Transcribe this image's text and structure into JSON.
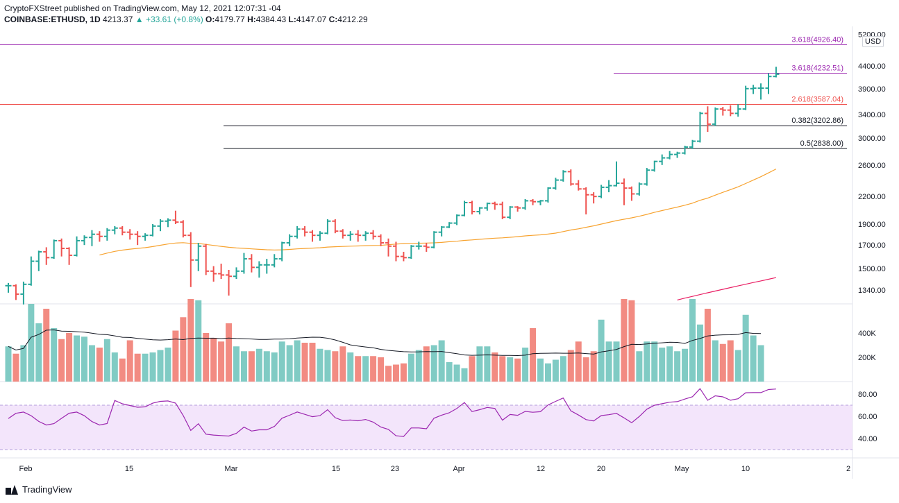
{
  "header": {
    "published": "CryptoFXStreet published on TradingView.com, May 12, 2021 12:07:31 -04",
    "symbol": "COINBASE:ETHUSD, 1D",
    "last": "4213.37",
    "change": "▲ +33.61 (+0.8%)",
    "o_label": "O:",
    "o_value": "4179.77",
    "h_label": "H:",
    "h_value": "4384.43",
    "l_label": "L:",
    "l_value": "4147.07",
    "c_label": "C:",
    "c_value": "4212.29"
  },
  "brand": "TradingView",
  "colors": {
    "up": "#26a69a",
    "down": "#ef5350",
    "ma50": "#f7a330",
    "ma200": "#e91e63",
    "rsi": "#9c27b0",
    "rsi_band": "#f3e5fb",
    "volume_ma": "#131722"
  },
  "chart_data": [
    {
      "type": "ohlc",
      "pane": "price",
      "scale": "log",
      "currency": "USD",
      "price_ticks": [
        "5200.00",
        "4400.00",
        "3900.00",
        "3400.00",
        "3000.00",
        "2600.00",
        "2200.00",
        "1900.00",
        "1700.00",
        "1500.00",
        "1340.00"
      ],
      "x_ticks": [
        "Feb",
        "15",
        "Mar",
        "15",
        "23",
        "Apr",
        "12",
        "20",
        "May",
        "10",
        "2"
      ],
      "series": [
        {
          "name": "ETHUSD",
          "ohlc": [
            [
              1370,
              1390,
              1320,
              1370
            ],
            [
              1370,
              1380,
              1270,
              1310
            ],
            [
              1310,
              1400,
              1240,
              1380
            ],
            [
              1380,
              1600,
              1370,
              1560
            ],
            [
              1560,
              1650,
              1480,
              1640
            ],
            [
              1640,
              1680,
              1530,
              1590
            ],
            [
              1590,
              1750,
              1580,
              1740
            ],
            [
              1740,
              1760,
              1600,
              1670
            ],
            [
              1670,
              1680,
              1530,
              1610
            ],
            [
              1610,
              1780,
              1600,
              1740
            ],
            [
              1740,
              1790,
              1700,
              1770
            ],
            [
              1770,
              1840,
              1690,
              1800
            ],
            [
              1800,
              1830,
              1730,
              1780
            ],
            [
              1780,
              1860,
              1740,
              1840
            ],
            [
              1840,
              1880,
              1800,
              1860
            ],
            [
              1860,
              1880,
              1790,
              1820
            ],
            [
              1820,
              1850,
              1750,
              1800
            ],
            [
              1800,
              1830,
              1700,
              1780
            ],
            [
              1780,
              1810,
              1740,
              1790
            ],
            [
              1790,
              1900,
              1780,
              1880
            ],
            [
              1880,
              1950,
              1830,
              1930
            ],
            [
              1930,
              1960,
              1870,
              1940
            ],
            [
              1940,
              2040,
              1900,
              1920
            ],
            [
              1920,
              1940,
              1770,
              1790
            ],
            [
              1790,
              1820,
              1360,
              1570
            ],
            [
              1570,
              1720,
              1480,
              1690
            ],
            [
              1690,
              1710,
              1450,
              1480
            ],
            [
              1480,
              1520,
              1400,
              1460
            ],
            [
              1460,
              1540,
              1420,
              1450
            ],
            [
              1450,
              1490,
              1300,
              1440
            ],
            [
              1440,
              1510,
              1420,
              1480
            ],
            [
              1480,
              1630,
              1460,
              1580
            ],
            [
              1580,
              1620,
              1470,
              1510
            ],
            [
              1510,
              1560,
              1430,
              1530
            ],
            [
              1530,
              1580,
              1460,
              1530
            ],
            [
              1530,
              1620,
              1510,
              1580
            ],
            [
              1580,
              1730,
              1560,
              1720
            ],
            [
              1720,
              1800,
              1690,
              1780
            ],
            [
              1780,
              1880,
              1760,
              1850
            ],
            [
              1850,
              1880,
              1780,
              1820
            ],
            [
              1820,
              1840,
              1730,
              1790
            ],
            [
              1790,
              1830,
              1740,
              1810
            ],
            [
              1810,
              1950,
              1800,
              1930
            ],
            [
              1930,
              1950,
              1810,
              1830
            ],
            [
              1830,
              1850,
              1760,
              1790
            ],
            [
              1790,
              1830,
              1740,
              1800
            ],
            [
              1800,
              1840,
              1730,
              1790
            ],
            [
              1790,
              1830,
              1740,
              1810
            ],
            [
              1810,
              1840,
              1750,
              1780
            ],
            [
              1780,
              1800,
              1690,
              1720
            ],
            [
              1720,
              1760,
              1600,
              1690
            ],
            [
              1690,
              1730,
              1560,
              1600
            ],
            [
              1600,
              1640,
              1560,
              1590
            ],
            [
              1590,
              1700,
              1580,
              1690
            ],
            [
              1690,
              1730,
              1660,
              1690
            ],
            [
              1690,
              1720,
              1640,
              1680
            ],
            [
              1680,
              1830,
              1670,
              1820
            ],
            [
              1820,
              1880,
              1780,
              1870
            ],
            [
              1870,
              1920,
              1860,
              1910
            ],
            [
              1910,
              2000,
              1890,
              1990
            ],
            [
              1990,
              2150,
              1980,
              2130
            ],
            [
              2130,
              2150,
              2000,
              2030
            ],
            [
              2030,
              2080,
              2000,
              2070
            ],
            [
              2070,
              2130,
              2040,
              2120
            ],
            [
              2120,
              2140,
              2050,
              2110
            ],
            [
              2110,
              2140,
              1950,
              1970
            ],
            [
              1970,
              2090,
              1950,
              2080
            ],
            [
              2080,
              2090,
              2030,
              2070
            ],
            [
              2070,
              2170,
              2050,
              2150
            ],
            [
              2150,
              2170,
              2100,
              2140
            ],
            [
              2140,
              2160,
              2100,
              2150
            ],
            [
              2150,
              2310,
              2130,
              2300
            ],
            [
              2300,
              2430,
              2280,
              2400
            ],
            [
              2400,
              2530,
              2380,
              2510
            ],
            [
              2510,
              2540,
              2330,
              2350
            ],
            [
              2350,
              2400,
              2270,
              2290
            ],
            [
              2290,
              2310,
              2000,
              2220
            ],
            [
              2220,
              2250,
              2120,
              2200
            ],
            [
              2200,
              2340,
              2180,
              2310
            ],
            [
              2310,
              2400,
              2250,
              2330
            ],
            [
              2330,
              2650,
              2320,
              2360
            ],
            [
              2360,
              2420,
              2100,
              2300
            ],
            [
              2300,
              2320,
              2150,
              2230
            ],
            [
              2230,
              2370,
              2210,
              2350
            ],
            [
              2350,
              2560,
              2330,
              2530
            ],
            [
              2530,
              2660,
              2510,
              2650
            ],
            [
              2650,
              2750,
              2600,
              2700
            ],
            [
              2700,
              2800,
              2680,
              2750
            ],
            [
              2750,
              2790,
              2700,
              2770
            ],
            [
              2770,
              2880,
              2750,
              2860
            ],
            [
              2860,
              2970,
              2830,
              2950
            ],
            [
              2950,
              3450,
              2930,
              3420
            ],
            [
              3420,
              3550,
              3100,
              3230
            ],
            [
              3230,
              3530,
              3200,
              3500
            ],
            [
              3500,
              3540,
              3380,
              3480
            ],
            [
              3480,
              3570,
              3370,
              3420
            ],
            [
              3420,
              3590,
              3360,
              3500
            ],
            [
              3500,
              3960,
              3480,
              3900
            ],
            [
              3900,
              3980,
              3790,
              3910
            ],
            [
              3910,
              4010,
              3680,
              3910
            ],
            [
              3910,
              4230,
              3790,
              4160
            ],
            [
              4160,
              4380,
              4140,
              4212
            ]
          ]
        }
      ],
      "overlays": [
        {
          "label": "3.618(4926.40)",
          "value": 4926.4,
          "color": "#9c27b0"
        },
        {
          "label": "3.618(4232.51)",
          "value": 4232.51,
          "color": "#9c27b0"
        },
        {
          "label": "2.618(3587.04)",
          "value": 3587.04,
          "color": "#ef5350"
        },
        {
          "label": "0.382(3202.86)",
          "value": 3202.86,
          "color": "#131722"
        },
        {
          "label": "0.5(2838.00)",
          "value": 2838.0,
          "color": "#131722"
        }
      ]
    },
    {
      "type": "bar",
      "pane": "volume",
      "volume_ticks": [
        "400K",
        "200K"
      ],
      "values": [
        290,
        230,
        300,
        640,
        480,
        600,
        440,
        350,
        400,
        380,
        370,
        300,
        280,
        350,
        240,
        190,
        340,
        230,
        230,
        240,
        260,
        280,
        420,
        530,
        680,
        670,
        400,
        360,
        330,
        480,
        290,
        250,
        250,
        270,
        250,
        240,
        330,
        300,
        340,
        320,
        320,
        270,
        260,
        250,
        290,
        240,
        210,
        210,
        210,
        200,
        130,
        140,
        150,
        230,
        260,
        290,
        300,
        340,
        160,
        140,
        110,
        210,
        290,
        290,
        240,
        210,
        200,
        190,
        280,
        440,
        190,
        150,
        180,
        210,
        260,
        330,
        200,
        250,
        510,
        330,
        330,
        680,
        670,
        250,
        330,
        330,
        280,
        290,
        250,
        270,
        680,
        470,
        600,
        340,
        310,
        340,
        260,
        550,
        380,
        300
      ]
    },
    {
      "type": "line",
      "pane": "rsi",
      "rsi_ticks": [
        "80.00",
        "60.00",
        "40.00"
      ],
      "band": [
        30,
        70
      ]
    }
  ]
}
